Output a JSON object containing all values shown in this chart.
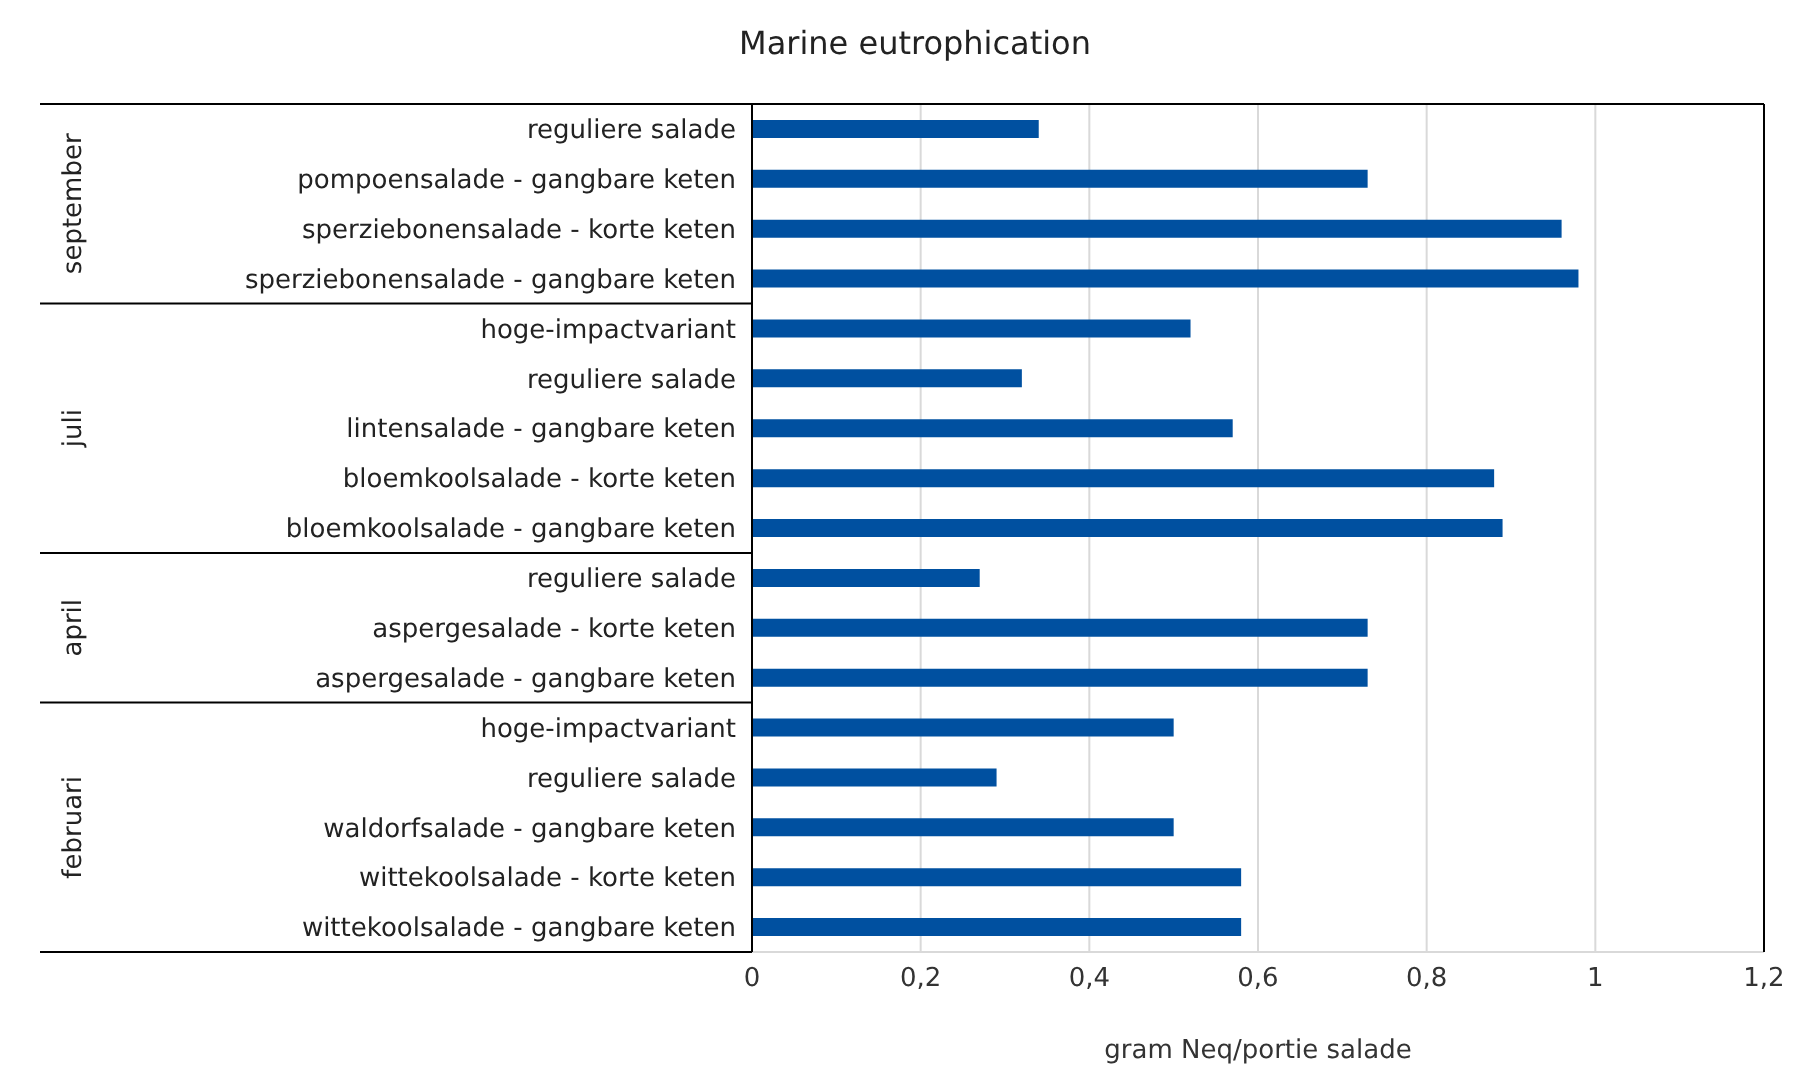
{
  "chart_data": {
    "type": "bar",
    "orientation": "horizontal",
    "title": "Marine eutrophication",
    "xlabel": "gram Neq/portie salade",
    "categories": [
      "reguliere salade",
      "pompoensalade - gangbare keten",
      "sperziebonensalade - korte keten",
      "sperziebonensalade - gangbare keten",
      "hoge-impactvariant",
      "reguliere salade",
      "lintensalade - gangbare keten",
      "bloemkoolsalade - korte keten",
      "bloemkoolsalade - gangbare keten",
      "reguliere salade",
      "aspergesalade - korte keten",
      "aspergesalade - gangbare keten",
      "hoge-impactvariant",
      "reguliere salade",
      "waldorfsalade - gangbare keten",
      "wittekoolsalade - korte keten",
      "wittekoolsalade - gangbare keten"
    ],
    "values": [
      0.34,
      0.73,
      0.96,
      0.98,
      0.52,
      0.32,
      0.57,
      0.88,
      0.89,
      0.27,
      0.73,
      0.73,
      0.5,
      0.29,
      0.5,
      0.58,
      0.58
    ],
    "color": "#0050a0",
    "xlim": [
      0,
      1.2
    ],
    "xticks": [
      {
        "value": 0,
        "label": "0"
      },
      {
        "value": 0.2,
        "label": "0,2"
      },
      {
        "value": 0.4,
        "label": "0,4"
      },
      {
        "value": 0.6,
        "label": "0,6"
      },
      {
        "value": 0.8,
        "label": "0,8"
      },
      {
        "value": 1,
        "label": "1"
      },
      {
        "value": 1.2,
        "label": "1,2"
      }
    ],
    "grid": "x",
    "annotations": [
      "september",
      "juli",
      "april",
      "februari"
    ]
  }
}
